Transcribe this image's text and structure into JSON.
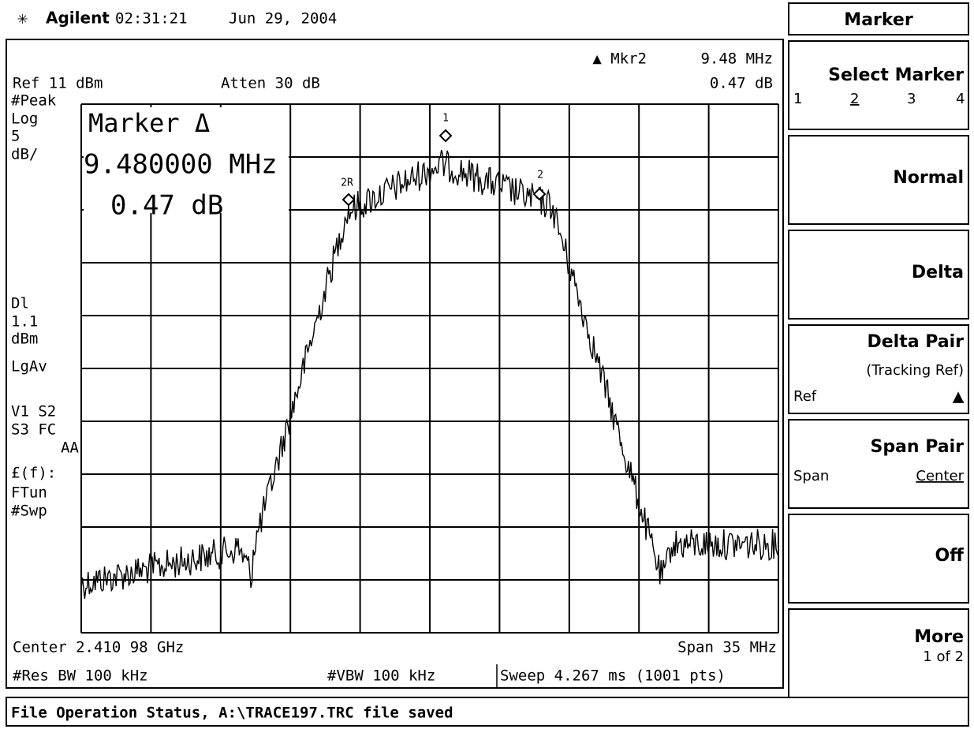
{
  "header": {
    "brand": "Agilent",
    "time": "02:31:21",
    "date": "Jun 29, 2004"
  },
  "display": {
    "ref_level": "Ref 11 dBm",
    "attenuation": "Atten 30 dB",
    "marker_readout": {
      "label": "▲ Mkr2",
      "frequency": "9.48 MHz",
      "amplitude": "0.47 dB"
    },
    "left_annotations": [
      "#Peak",
      "Log",
      "5",
      "dB/",
      "Dl",
      "1.1",
      "dBm",
      "LgAv",
      "V1  S2",
      "S3  FC",
      "AA",
      "£(f):",
      "FTun",
      "#Swp"
    ],
    "marker_box": {
      "title": "Marker Δ",
      "frequency": "9.480000 MHz",
      "amplitude": "0.47 dB"
    },
    "markers": [
      "1",
      "2R",
      "2"
    ],
    "footer": {
      "center": "Center 2.410 98 GHz",
      "span": "Span 35 MHz",
      "rbw": "#Res BW 100 kHz",
      "vbw": "#VBW 100 kHz",
      "sweep": "Sweep 4.267 ms (1001 pts)"
    }
  },
  "softkeys": {
    "title": "Marker",
    "select_marker": {
      "label": "Select Marker",
      "options": [
        "1",
        "2",
        "3",
        "4"
      ]
    },
    "normal": "Normal",
    "delta": "Delta",
    "delta_pair": {
      "label": "Delta Pair",
      "sub": "(Tracking Ref)",
      "left": "Ref",
      "right": "▲"
    },
    "span_pair": {
      "label": "Span Pair",
      "left": "Span",
      "right": "Center"
    },
    "off": "Off",
    "more": {
      "label": "More",
      "sub": "1 of 2"
    }
  },
  "status": "File Operation Status, A:\\TRACE197.TRC file saved"
}
